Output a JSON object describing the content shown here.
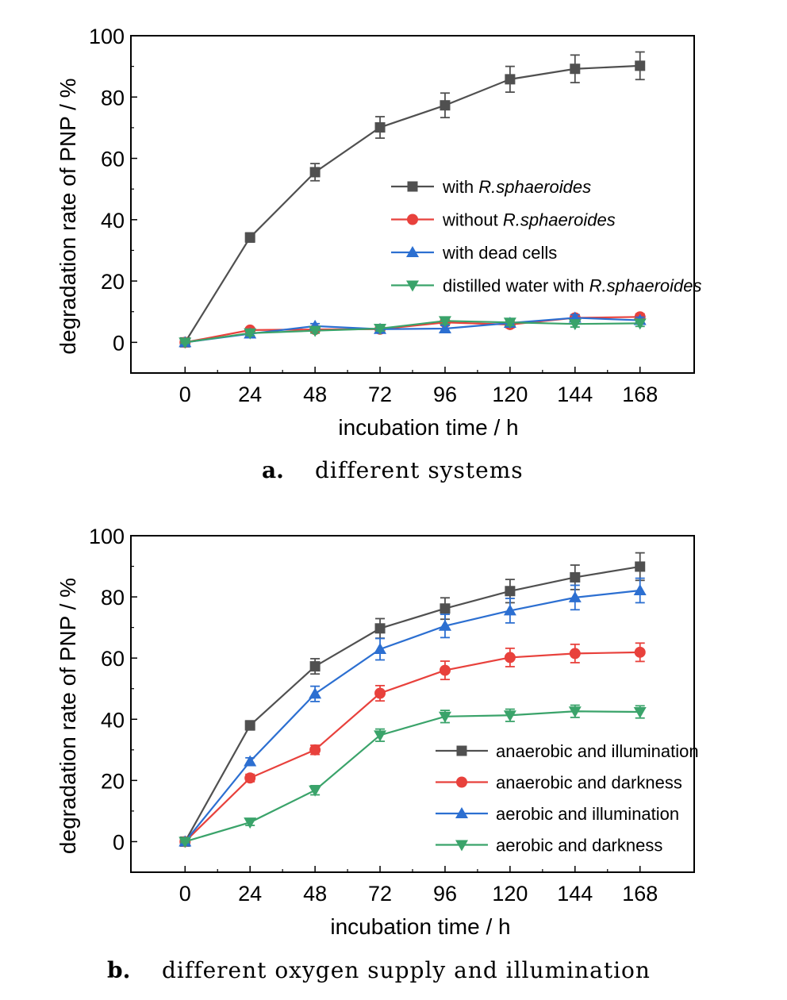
{
  "chart_data": [
    {
      "type": "line",
      "panel_letter": "a.",
      "caption": "different systems",
      "xlabel": "incubation time / h",
      "ylabel": "degradation rate of PNP / %",
      "x": [
        0,
        24,
        48,
        72,
        96,
        120,
        144,
        168
      ],
      "xlim": [
        -20,
        188
      ],
      "ylim": [
        -10,
        100
      ],
      "xticks": [
        "0",
        "24",
        "48",
        "72",
        "96",
        "120",
        "144",
        "168"
      ],
      "yticks": [
        "0",
        "20",
        "40",
        "60",
        "80",
        "100"
      ],
      "legend_position": "center-right",
      "series": [
        {
          "name_parts": [
            "with ",
            "R.sphaeroides"
          ],
          "color": "#505050",
          "marker": "square",
          "values": [
            0,
            34.2,
            55.5,
            70.1,
            77.3,
            85.8,
            89.2,
            90.2
          ],
          "errors": [
            0.5,
            1.5,
            2.8,
            3.5,
            4.0,
            4.2,
            4.5,
            4.5
          ]
        },
        {
          "name_parts": [
            "without ",
            "R.sphaeroides"
          ],
          "color": "#e8413c",
          "marker": "circle",
          "values": [
            0,
            4.0,
            4.2,
            4.3,
            6.5,
            5.8,
            8.0,
            8.3
          ],
          "errors": [
            0.3,
            0.8,
            0.8,
            0.8,
            1.0,
            1.0,
            1.0,
            1.0
          ]
        },
        {
          "name_parts": [
            "with dead cells",
            ""
          ],
          "color": "#2c6fd1",
          "marker": "triangle-up",
          "values": [
            0,
            2.8,
            5.3,
            4.3,
            4.5,
            6.3,
            8.0,
            7.2
          ],
          "errors": [
            0.3,
            0.8,
            0.8,
            0.8,
            1.0,
            1.0,
            1.0,
            1.0
          ]
        },
        {
          "name_parts": [
            "distilled water with ",
            "R.sphaeroides"
          ],
          "color": "#3aa36a",
          "marker": "triangle-down",
          "values": [
            0,
            3.0,
            3.8,
            4.5,
            7.0,
            6.5,
            6.0,
            6.2
          ],
          "errors": [
            0.3,
            0.8,
            0.8,
            0.8,
            1.0,
            1.0,
            1.0,
            1.0
          ]
        }
      ]
    },
    {
      "type": "line",
      "panel_letter": "b.",
      "caption": "different oxygen supply and illumination",
      "xlabel": "incubation time / h",
      "ylabel": "degradation rate of PNP / %",
      "x": [
        0,
        24,
        48,
        72,
        96,
        120,
        144,
        168
      ],
      "xlim": [
        -20,
        188
      ],
      "ylim": [
        -10,
        100
      ],
      "xticks": [
        "0",
        "24",
        "48",
        "72",
        "96",
        "120",
        "144",
        "168"
      ],
      "yticks": [
        "0",
        "20",
        "40",
        "60",
        "80",
        "100"
      ],
      "legend_position": "lower-right",
      "series": [
        {
          "name_parts": [
            "anaerobic and illumination",
            ""
          ],
          "color": "#505050",
          "marker": "square",
          "values": [
            0,
            38.0,
            57.3,
            69.7,
            76.2,
            81.9,
            86.4,
            89.9
          ],
          "errors": [
            0.5,
            1.5,
            2.5,
            3.2,
            3.5,
            3.8,
            4.0,
            4.5
          ]
        },
        {
          "name_parts": [
            "anaerobic and darkness",
            ""
          ],
          "color": "#e8413c",
          "marker": "circle",
          "values": [
            0,
            20.8,
            30.0,
            48.5,
            56.0,
            60.2,
            61.5,
            61.9
          ],
          "errors": [
            0.3,
            1.2,
            1.5,
            2.5,
            3.0,
            3.0,
            3.0,
            3.0
          ]
        },
        {
          "name_parts": [
            "aerobic and illumination",
            ""
          ],
          "color": "#2c6fd1",
          "marker": "triangle-up",
          "values": [
            0,
            26.2,
            48.3,
            62.9,
            70.5,
            75.5,
            79.8,
            82.1
          ],
          "errors": [
            0.3,
            1.2,
            2.5,
            3.5,
            3.8,
            4.0,
            4.0,
            4.0
          ]
        },
        {
          "name_parts": [
            "aerobic and darkness",
            ""
          ],
          "color": "#3aa36a",
          "marker": "triangle-down",
          "values": [
            0,
            6.3,
            16.8,
            34.8,
            40.9,
            41.3,
            42.6,
            42.4
          ],
          "errors": [
            0.3,
            1.0,
            1.5,
            2.0,
            2.0,
            2.0,
            2.0,
            2.0
          ]
        }
      ]
    }
  ]
}
